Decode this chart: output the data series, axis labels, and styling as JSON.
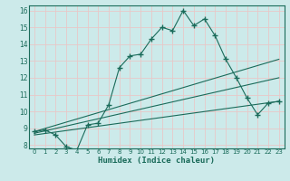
{
  "xlabel": "Humidex (Indice chaleur)",
  "xlim": [
    -0.5,
    23.5
  ],
  "ylim": [
    7.8,
    16.3
  ],
  "yticks": [
    8,
    9,
    10,
    11,
    12,
    13,
    14,
    15,
    16
  ],
  "xticks": [
    0,
    1,
    2,
    3,
    4,
    5,
    6,
    7,
    8,
    9,
    10,
    11,
    12,
    13,
    14,
    15,
    16,
    17,
    18,
    19,
    20,
    21,
    22,
    23
  ],
  "background_color": "#cceaea",
  "line_color": "#1a6b5a",
  "grid_color": "#e8c8c8",
  "lines": [
    {
      "x": [
        0,
        1,
        2,
        3,
        4,
        5,
        6,
        7,
        8,
        9,
        10,
        11,
        12,
        13,
        14,
        15,
        16,
        17,
        18,
        19,
        20,
        21,
        22,
        23
      ],
      "y": [
        8.8,
        8.9,
        8.6,
        7.9,
        7.7,
        9.2,
        9.3,
        10.4,
        12.6,
        13.3,
        13.4,
        14.3,
        15.0,
        14.8,
        16.0,
        15.1,
        15.5,
        14.5,
        13.1,
        12.0,
        10.8,
        9.8,
        10.5,
        10.6
      ],
      "has_markers": true
    },
    {
      "x": [
        0,
        23
      ],
      "y": [
        8.8,
        13.1
      ],
      "has_markers": false
    },
    {
      "x": [
        0,
        23
      ],
      "y": [
        8.7,
        12.0
      ],
      "has_markers": false
    },
    {
      "x": [
        0,
        23
      ],
      "y": [
        8.6,
        10.6
      ],
      "has_markers": false
    }
  ]
}
